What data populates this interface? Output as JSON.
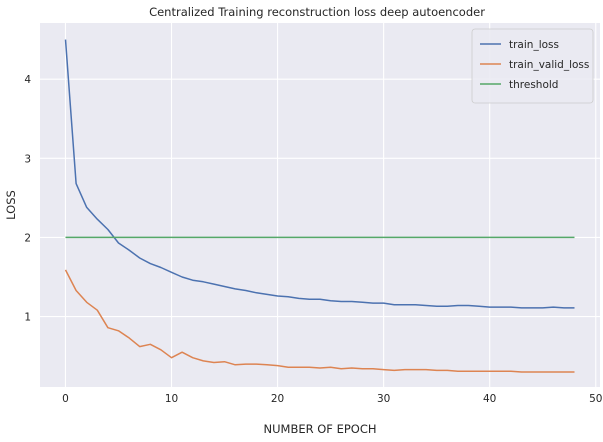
{
  "chart_data": {
    "type": "line",
    "title": "Centralized Training reconstruction loss deep autoencoder",
    "xlabel": "NUMBER OF EPOCH",
    "ylabel": "LOSS",
    "xlim": [
      -2.4,
      50.4
    ],
    "ylim": [
      0.11,
      4.71
    ],
    "xticks": [
      0,
      10,
      20,
      30,
      40,
      50
    ],
    "yticks": [
      1,
      2,
      3,
      4
    ],
    "grid": true,
    "legend_position": "top-right",
    "series": [
      {
        "name": "train_loss",
        "color": "#4c72b0",
        "x": [
          0,
          1,
          2,
          3,
          4,
          5,
          6,
          7,
          8,
          9,
          10,
          11,
          12,
          13,
          14,
          15,
          16,
          17,
          18,
          19,
          20,
          21,
          22,
          23,
          24,
          25,
          26,
          27,
          28,
          29,
          30,
          31,
          32,
          33,
          34,
          35,
          36,
          37,
          38,
          39,
          40,
          41,
          42,
          43,
          44,
          45,
          46,
          47,
          48
        ],
        "values": [
          4.5,
          2.68,
          2.38,
          2.23,
          2.1,
          1.93,
          1.84,
          1.74,
          1.67,
          1.62,
          1.56,
          1.5,
          1.46,
          1.44,
          1.41,
          1.38,
          1.35,
          1.33,
          1.3,
          1.28,
          1.26,
          1.25,
          1.23,
          1.22,
          1.22,
          1.2,
          1.19,
          1.19,
          1.18,
          1.17,
          1.17,
          1.15,
          1.15,
          1.15,
          1.14,
          1.13,
          1.13,
          1.14,
          1.14,
          1.13,
          1.12,
          1.12,
          1.12,
          1.11,
          1.11,
          1.11,
          1.12,
          1.11,
          1.11
        ]
      },
      {
        "name": "train_valid_loss",
        "color": "#dd8452",
        "x": [
          0,
          1,
          2,
          3,
          4,
          5,
          6,
          7,
          8,
          9,
          10,
          11,
          12,
          13,
          14,
          15,
          16,
          17,
          18,
          19,
          20,
          21,
          22,
          23,
          24,
          25,
          26,
          27,
          28,
          29,
          30,
          31,
          32,
          33,
          34,
          35,
          36,
          37,
          38,
          39,
          40,
          41,
          42,
          43,
          44,
          45,
          46,
          47,
          48
        ],
        "values": [
          1.59,
          1.33,
          1.18,
          1.08,
          0.86,
          0.82,
          0.73,
          0.62,
          0.65,
          0.58,
          0.48,
          0.55,
          0.48,
          0.44,
          0.42,
          0.43,
          0.39,
          0.4,
          0.4,
          0.39,
          0.38,
          0.36,
          0.36,
          0.36,
          0.35,
          0.36,
          0.34,
          0.35,
          0.34,
          0.34,
          0.33,
          0.32,
          0.33,
          0.33,
          0.33,
          0.32,
          0.32,
          0.31,
          0.31,
          0.31,
          0.31,
          0.31,
          0.31,
          0.3,
          0.3,
          0.3,
          0.3,
          0.3,
          0.3
        ]
      },
      {
        "name": "threshold",
        "color": "#55a868",
        "x": [
          0,
          48
        ],
        "values": [
          2.0,
          2.0
        ]
      }
    ]
  },
  "colors": {
    "plot_background": "#eaeaf2",
    "grid": "#ffffff",
    "text": "#262626"
  }
}
